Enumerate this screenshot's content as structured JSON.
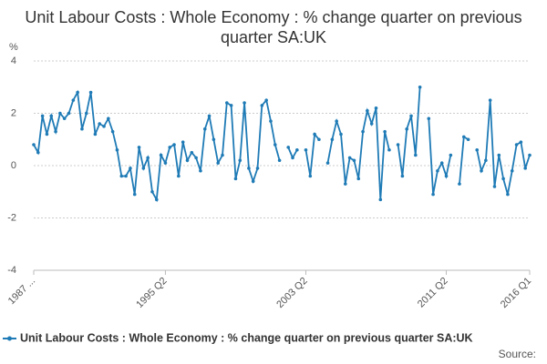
{
  "chart_data": {
    "type": "line",
    "title": "Unit Labour Costs : Whole Economy : % change quarter on previous quarter SA:UK",
    "y_label": "%",
    "source": "Source:",
    "categories": [
      "1987 ...",
      null,
      null,
      null,
      null,
      null,
      null,
      null,
      null,
      null,
      null,
      null,
      null,
      null,
      null,
      null,
      null,
      null,
      null,
      null,
      null,
      null,
      null,
      null,
      null,
      null,
      null,
      null,
      null,
      null,
      "1995 Q2",
      null,
      null,
      null,
      null,
      null,
      null,
      null,
      null,
      null,
      null,
      null,
      null,
      null,
      null,
      null,
      null,
      null,
      null,
      null,
      null,
      null,
      null,
      null,
      null,
      null,
      null,
      null,
      null,
      null,
      null,
      null,
      "2003 Q2",
      null,
      null,
      null,
      null,
      null,
      null,
      null,
      null,
      null,
      null,
      null,
      null,
      null,
      null,
      null,
      null,
      null,
      null,
      null,
      null,
      null,
      null,
      null,
      null,
      null,
      null,
      null,
      null,
      null,
      null,
      null,
      "2011 Q2",
      null,
      null,
      null,
      null,
      null,
      null,
      null,
      null,
      null,
      null,
      null,
      null,
      null,
      null,
      null,
      null,
      null,
      null,
      "2016 Q1"
    ],
    "series": [
      {
        "name": "Unit Labour Costs : Whole Economy : % change quarter on previous quarter SA:UK",
        "color": "#1f7bb6",
        "values": [
          0.8,
          0.5,
          1.9,
          1.2,
          1.9,
          1.3,
          2.0,
          1.8,
          2.0,
          2.5,
          2.8,
          1.4,
          2.0,
          2.8,
          1.2,
          1.6,
          1.5,
          1.8,
          1.3,
          0.6,
          -0.4,
          -0.4,
          -0.1,
          -1.1,
          0.7,
          -0.1,
          0.3,
          -1.0,
          -1.3,
          0.4,
          0.1,
          0.7,
          0.8,
          -0.4,
          0.9,
          0.2,
          0.5,
          0.3,
          -0.2,
          1.4,
          1.9,
          1.0,
          0.1,
          0.4,
          2.4,
          2.3,
          -0.5,
          0.2,
          2.4,
          -0.1,
          -0.6,
          -0.1,
          2.3,
          2.5,
          1.7,
          0.8,
          0.2,
          null,
          0.7,
          0.3,
          0.6,
          null,
          0.6,
          -0.4,
          1.2,
          1.0,
          null,
          0.1,
          1.0,
          1.7,
          1.2,
          -0.7,
          0.3,
          0.2,
          -0.5,
          1.3,
          2.1,
          1.6,
          2.2,
          -1.3,
          1.3,
          0.6,
          null,
          0.8,
          -0.4,
          1.4,
          1.9,
          0.4,
          3.0,
          null,
          1.8,
          -1.1,
          -0.2,
          0.1,
          -0.4,
          0.4,
          null,
          -0.7,
          1.1,
          1.0,
          null,
          0.6,
          -0.2,
          0.2,
          2.5,
          -0.8,
          0.4,
          -0.5,
          -1.1,
          -0.2,
          0.8,
          0.9,
          -0.1,
          0.4
        ]
      }
    ],
    "ylim": [
      -4,
      4
    ],
    "yticks": [
      -4,
      -2,
      0,
      2,
      4
    ],
    "grid": true
  }
}
